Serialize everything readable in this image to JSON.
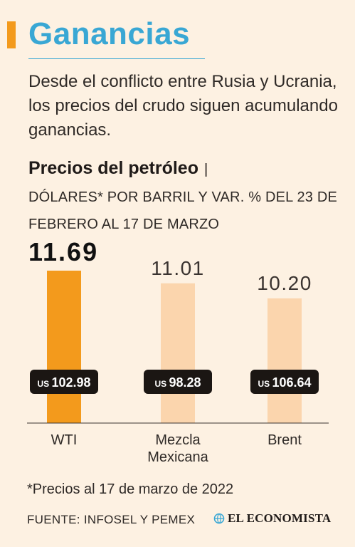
{
  "header": {
    "title": "Ganancias",
    "subtitle": "Desde el conflicto entre Rusia y Ucrania, los precios del crudo siguen acumulando ganancias."
  },
  "chart_data": {
    "type": "bar",
    "title": "Precios del petróleo",
    "title_separator": "|",
    "description": "DÓLARES* POR BARRIL Y VAR. % DEL 23 DE FEBRERO AL 17 DE MARZO",
    "categories": [
      "WTI",
      "Mezcla\nMexicana",
      "Brent"
    ],
    "series": [
      {
        "values": [
          11.69,
          11.01,
          10.2
        ]
      }
    ],
    "price_labels": [
      "102.98",
      "98.28",
      "106.64"
    ],
    "currency_prefix": "US",
    "highlight_index": 0,
    "grid": false,
    "colors": {
      "highlight_bar": "#f39a1c",
      "bar": "#fbd5ad",
      "label_box": "#1b1613",
      "baseline": "#3a3330"
    }
  },
  "footnote": "*Precios al 17 de marzo de 2022",
  "source": {
    "text": "FUENTE: INFOSEL Y PEMEX",
    "brand": "EL ECONOMISTA",
    "brand_icon": "globe-icon"
  },
  "colors": {
    "background": "#fdf1e2",
    "accent": "#f39a1c",
    "title": "#39a7d4"
  }
}
